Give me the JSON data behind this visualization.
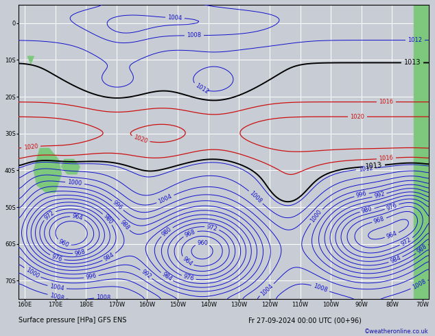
{
  "title": "Surface pressure [HPa] GFS ENS",
  "datetime_str": "Fr 27-09-2024 00:00 UTC (00+96)",
  "copyright": "©weatheronline.co.uk",
  "bg_color": "#c8ccd4",
  "land_color": "#7ec87e",
  "grid_color": "#ffffff",
  "contour_levels_blue": [
    960,
    964,
    968,
    972,
    976,
    980,
    984,
    988,
    992,
    996,
    1000,
    1004,
    1008,
    1012
  ],
  "contour_levels_black": [
    1013
  ],
  "contour_levels_red": [
    1016,
    1020
  ],
  "contour_color_blue": "#1010cc",
  "contour_color_black": "#000000",
  "contour_color_red": "#cc1010",
  "lon_min": 158,
  "lon_max": 292,
  "lat_min": -75,
  "lat_max": 5,
  "lw_blue": 0.7,
  "lw_black": 1.4,
  "lw_red": 0.9,
  "label_fontsize": 6,
  "tick_fontsize": 6
}
